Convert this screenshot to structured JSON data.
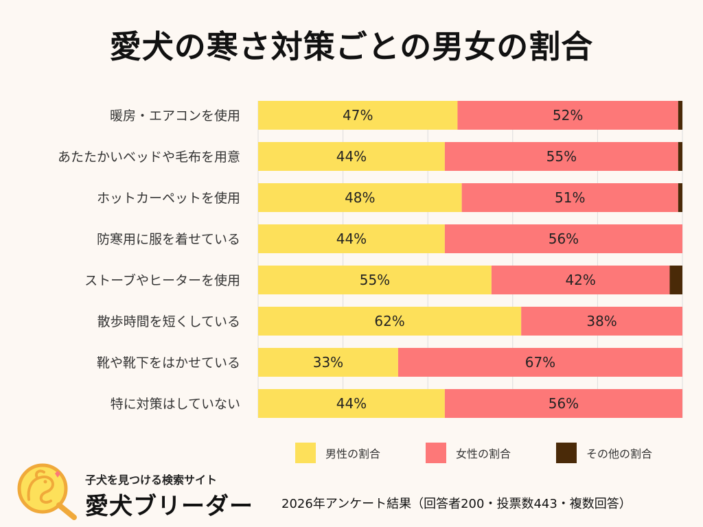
{
  "title": "愛犬の寒さ対策ごとの男女の割合",
  "chart_data": {
    "type": "bar",
    "orientation": "horizontal",
    "stacked": true,
    "title": "愛犬の寒さ対策ごとの男女の割合",
    "xlim": [
      0,
      100
    ],
    "grid": true,
    "categories": [
      "暖房・エアコンを使用",
      "あたたかいベッドや毛布を用意",
      "ホットカーペットを使用",
      "防寒用に服を着せている",
      "ストーブやヒーターを使用",
      "散歩時間を短くしている",
      "靴や靴下をはかせている",
      "特に対策はしていない"
    ],
    "series": [
      {
        "name": "男性の割合",
        "color": "#fde05a",
        "values": [
          47,
          44,
          48,
          44,
          55,
          62,
          33,
          44
        ],
        "labels": [
          "47%",
          "44%",
          "48%",
          "44%",
          "55%",
          "62%",
          "33%",
          "44%"
        ]
      },
      {
        "name": "女性の割合",
        "color": "#fd7878",
        "values": [
          52,
          55,
          51,
          56,
          42,
          38,
          67,
          56
        ],
        "labels": [
          "52%",
          "55%",
          "51%",
          "56%",
          "42%",
          "38%",
          "67%",
          "56%"
        ]
      },
      {
        "name": "その他の割合",
        "color": "#4a2a08",
        "values": [
          1,
          1,
          1,
          0,
          3,
          0,
          0,
          0
        ]
      }
    ],
    "legend_position": "bottom"
  },
  "logo": {
    "tagline": "子犬を見つける検索サイト",
    "name": "愛犬ブリーダー"
  },
  "footnote": "2026年アンケート結果（回答者200・投票数443・複数回答）"
}
